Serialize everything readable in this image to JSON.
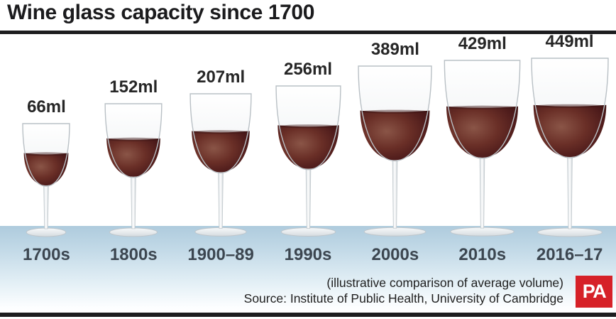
{
  "title": "Wine glass capacity since 1700",
  "chart_data": {
    "type": "bar",
    "title": "Wine glass capacity since 1700",
    "unit": "ml",
    "categories": [
      "1700s",
      "1800s",
      "1900–89",
      "1990s",
      "2000s",
      "2010s",
      "2016–17"
    ],
    "values": [
      66,
      152,
      207,
      256,
      389,
      429,
      449
    ],
    "value_labels": [
      "66ml",
      "152ml",
      "207ml",
      "256ml",
      "389ml",
      "429ml",
      "449ml"
    ],
    "value_range": [
      66,
      449
    ],
    "legend": "none",
    "note": "(illustrative comparison of average volume)",
    "source": "Source: Institute of Public Health, University of Cambridge"
  },
  "glasses": [
    {
      "volume_ml": 66,
      "label": "66ml",
      "period": "1700s"
    },
    {
      "volume_ml": 152,
      "label": "152ml",
      "period": "1800s"
    },
    {
      "volume_ml": 207,
      "label": "207ml",
      "period": "1900–89"
    },
    {
      "volume_ml": 256,
      "label": "256ml",
      "period": "1990s"
    },
    {
      "volume_ml": 389,
      "label": "389ml",
      "period": "2000s"
    },
    {
      "volume_ml": 429,
      "label": "429ml",
      "period": "2010s"
    },
    {
      "volume_ml": 449,
      "label": "449ml",
      "period": "2016–17"
    }
  ],
  "footer": {
    "note": "(illustrative comparison of average volume)",
    "source": "Source: Institute of Public Health, University of Cambridge",
    "logo_text": "PA"
  },
  "colors": {
    "accent_red": "#d62128",
    "rule_dark": "#1d1d1f",
    "band_blue_top": "#aecbdd",
    "wine_dark": "#36100f",
    "wine_mid": "#6a2f27",
    "wine_light": "#8a5547",
    "value_text": "#262626",
    "period_text": "#3c4650"
  }
}
